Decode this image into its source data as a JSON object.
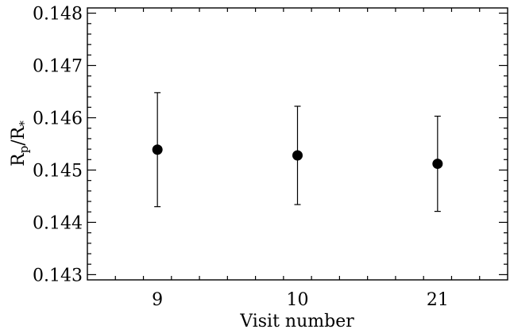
{
  "chart_data": {
    "type": "scatter",
    "title": "",
    "xlabel": "Visit number",
    "ylabel": "R_p/R_*",
    "ylabel_parts": {
      "main": "R",
      "sub1": "p",
      "slash": "/R",
      "sub2": "*"
    },
    "categories": [
      "9",
      "10",
      "21"
    ],
    "values": [
      0.14539,
      0.14528,
      0.14512
    ],
    "errors": [
      0.00109,
      0.00094,
      0.00091
    ],
    "ylim": [
      0.1429,
      0.1481
    ],
    "yticks": [
      0.143,
      0.144,
      0.145,
      0.146,
      0.147,
      0.148
    ],
    "ytick_labels": [
      "0.143",
      "0.144",
      "0.145",
      "0.146",
      "0.147",
      "0.148"
    ],
    "x_positions": [
      1,
      2,
      3
    ],
    "xlim": [
      0.5,
      3.5
    ],
    "grid": false,
    "legend": "none",
    "marker_color": "#000000"
  }
}
